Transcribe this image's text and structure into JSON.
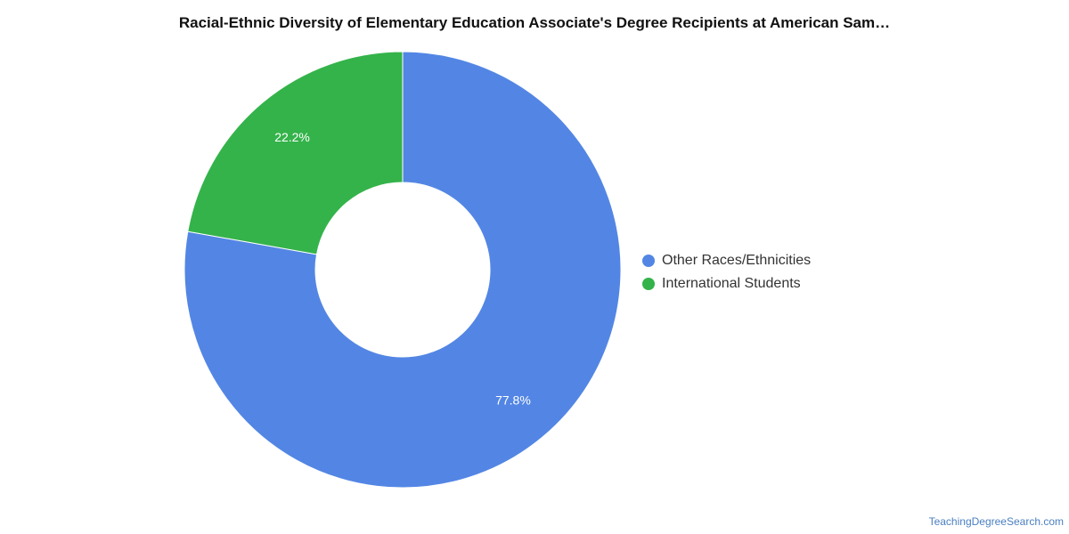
{
  "title": "Racial-Ethnic Diversity of Elementary Education Associate's Degree Recipients at American Sam…",
  "source": "TeachingDegreeSearch.com",
  "chart_data": {
    "type": "pie",
    "donut": true,
    "title": "Racial-Ethnic Diversity of Elementary Education Associate's Degree Recipients at American Sam…",
    "categories": [
      "Other Races/Ethnicities",
      "International Students"
    ],
    "values": [
      77.8,
      22.2
    ],
    "labels": [
      "77.8%",
      "22.2%"
    ],
    "colors": [
      "#5386e4",
      "#34b34a"
    ],
    "legend_position": "right"
  }
}
